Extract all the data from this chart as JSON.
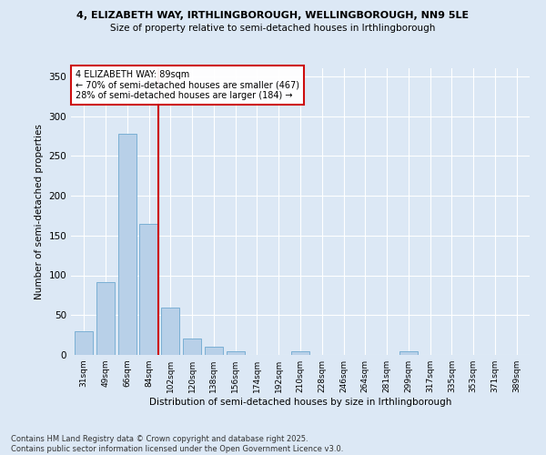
{
  "title_line1": "4, ELIZABETH WAY, IRTHLINGBOROUGH, WELLINGBOROUGH, NN9 5LE",
  "title_line2": "Size of property relative to semi-detached houses in Irthlingborough",
  "xlabel": "Distribution of semi-detached houses by size in Irthlingborough",
  "ylabel": "Number of semi-detached properties",
  "footer": "Contains HM Land Registry data © Crown copyright and database right 2025.\nContains public sector information licensed under the Open Government Licence v3.0.",
  "bar_labels": [
    "31sqm",
    "49sqm",
    "66sqm",
    "84sqm",
    "102sqm",
    "120sqm",
    "138sqm",
    "156sqm",
    "174sqm",
    "192sqm",
    "210sqm",
    "228sqm",
    "246sqm",
    "264sqm",
    "281sqm",
    "299sqm",
    "317sqm",
    "335sqm",
    "353sqm",
    "371sqm",
    "389sqm"
  ],
  "bar_values": [
    30,
    92,
    278,
    165,
    60,
    21,
    10,
    5,
    0,
    0,
    5,
    0,
    0,
    0,
    0,
    5,
    0,
    0,
    0,
    0,
    0
  ],
  "bar_color": "#b8d0e8",
  "bar_edgecolor": "#7aafd4",
  "bg_color": "#dce8f5",
  "grid_color": "#ffffff",
  "vline_color": "#cc0000",
  "annotation_text": "4 ELIZABETH WAY: 89sqm\n← 70% of semi-detached houses are smaller (467)\n28% of semi-detached houses are larger (184) →",
  "annotation_box_edge": "#cc0000",
  "ylim": [
    0,
    360
  ],
  "yticks": [
    0,
    50,
    100,
    150,
    200,
    250,
    300,
    350
  ]
}
